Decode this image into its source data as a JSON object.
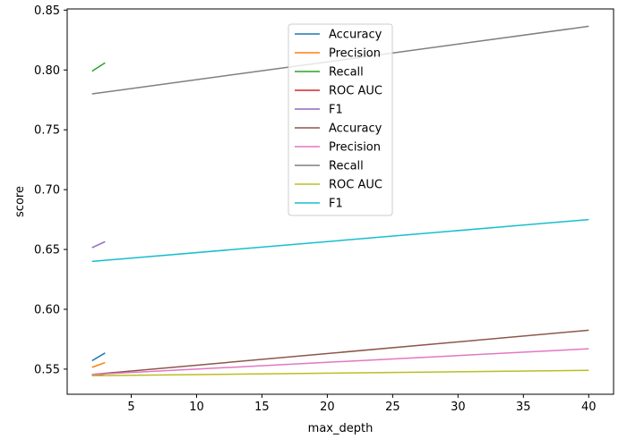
{
  "chart_data": {
    "type": "line",
    "xlabel": "max_depth",
    "ylabel": "score",
    "xlim": [
      0.1,
      41.9
    ],
    "ylim": [
      0.529,
      0.851
    ],
    "xticks": [
      5,
      10,
      15,
      20,
      25,
      30,
      35,
      40
    ],
    "yticks": [
      0.55,
      0.6,
      0.65,
      0.7,
      0.75,
      0.8,
      0.85
    ],
    "grid": false,
    "legend_position": "top-center",
    "series": [
      {
        "name": "Accuracy",
        "color": "#1f77b4",
        "x": [
          2,
          3
        ],
        "y": [
          0.557,
          0.5635
        ]
      },
      {
        "name": "Precision",
        "color": "#ff7f0e",
        "x": [
          2,
          3
        ],
        "y": [
          0.5515,
          0.5555
        ]
      },
      {
        "name": "Recall",
        "color": "#2ca02c",
        "x": [
          2,
          3
        ],
        "y": [
          0.799,
          0.806
        ]
      },
      {
        "name": "ROC AUC",
        "color": "#d62728",
        "x": [
          2,
          3
        ],
        "y": [
          0.5445,
          0.546
        ]
      },
      {
        "name": "F1",
        "color": "#9467bd",
        "x": [
          2,
          3
        ],
        "y": [
          0.6515,
          0.6565
        ]
      },
      {
        "name": "Accuracy",
        "color": "#8c564b",
        "x": [
          2,
          40
        ],
        "y": [
          0.5455,
          0.5825
        ]
      },
      {
        "name": "Precision",
        "color": "#e377c2",
        "x": [
          2,
          40
        ],
        "y": [
          0.5455,
          0.567
        ]
      },
      {
        "name": "Recall",
        "color": "#7f7f7f",
        "x": [
          2,
          40
        ],
        "y": [
          0.78,
          0.8365
        ]
      },
      {
        "name": "ROC AUC",
        "color": "#bcbd22",
        "x": [
          2,
          40
        ],
        "y": [
          0.5445,
          0.549
        ]
      },
      {
        "name": "F1",
        "color": "#17becf",
        "x": [
          2,
          40
        ],
        "y": [
          0.64,
          0.675
        ]
      }
    ]
  }
}
